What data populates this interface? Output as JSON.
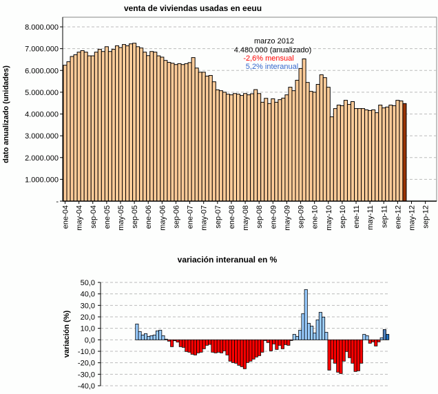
{
  "chart_data": [
    {
      "type": "bar",
      "title": "venta de viviendas usadas en eeuu",
      "ylabel": "dato anualizado (unidades)",
      "xlabel": "",
      "ylim": [
        0,
        8000000
      ],
      "y_ticks": [
        "-",
        "1.000.000",
        "2.000.000",
        "3.000.000",
        "4.000.000",
        "5.000.000",
        "6.000.000",
        "7.000.000",
        "8.000.000"
      ],
      "x_tick_labels": [
        "ene-04",
        "may-04",
        "sep-04",
        "ene-05",
        "may-05",
        "sep-05",
        "ene-06",
        "may-06",
        "sep-06",
        "ene-07",
        "may-07",
        "sep-07",
        "ene-08",
        "may-08",
        "sep-08",
        "ene-09",
        "may-09",
        "sep-09",
        "ene-10",
        "may-10",
        "sep-10",
        "ene-11",
        "may-11",
        "sep-11",
        "ene-12",
        "may-12",
        "sep-12"
      ],
      "x_range": [
        "ene-04",
        "dic-12"
      ],
      "grid": true,
      "colors": {
        "bar": "#ffcc99",
        "highlight": "#993300"
      },
      "values": [
        6240000,
        6400000,
        6640000,
        6720000,
        6840000,
        6910000,
        6840000,
        6670000,
        6670000,
        6840000,
        6970000,
        6870000,
        7090000,
        6870000,
        6970000,
        7130000,
        7050000,
        7190000,
        7130000,
        7220000,
        7250000,
        7090000,
        7030000,
        6840000,
        6680000,
        6870000,
        6840000,
        6670000,
        6610000,
        6460000,
        6370000,
        6330000,
        6270000,
        6310000,
        6270000,
        6310000,
        6360000,
        6590000,
        6110000,
        5920000,
        5920000,
        5740000,
        5770000,
        5480000,
        5110000,
        5070000,
        5000000,
        4910000,
        4880000,
        4940000,
        4910000,
        4850000,
        4940000,
        4880000,
        4930000,
        5120000,
        4940000,
        4540000,
        4720000,
        4480000,
        4700000,
        4540000,
        4660000,
        4730000,
        4880000,
        5230000,
        5070000,
        5550000,
        6090000,
        6530000,
        5450000,
        5040000,
        5000000,
        5360000,
        5800000,
        5670000,
        5230000,
        3870000,
        4250000,
        4410000,
        4380000,
        4630000,
        4440000,
        4570000,
        4250000,
        4250000,
        4250000,
        4190000,
        4160000,
        4190000,
        4060000,
        4410000,
        4280000,
        4320000,
        4410000,
        4380000,
        4630000,
        4600000,
        4480000
      ],
      "annotation": {
        "line1": "marzo 2012",
        "line2": "4.480.000 (anualizado)",
        "line3": "-2,6% mensual",
        "line4": "5,2% interanual",
        "colors": {
          "line1": "#000000",
          "line2": "#000000",
          "line3": "#ff0000",
          "line4": "#3366cc"
        }
      }
    },
    {
      "type": "bar",
      "title": "variación interanual en %",
      "ylabel": "variación (%)",
      "xlabel": "",
      "ylim": [
        -40,
        50
      ],
      "y_ticks": [
        "-40,0",
        "-30,0",
        "-20,0",
        "-10,0",
        "0,0",
        "10,0",
        "20,0",
        "30,0",
        "40,0",
        "50,0"
      ],
      "x_range": [
        "ene-04",
        "mar-12"
      ],
      "series_start": "ene-05",
      "grid": true,
      "colors": {
        "positive": "#99ccff",
        "negative": "#ff0000",
        "prev_month": "#4f81bd",
        "current_month": "#1f6fbf"
      },
      "values": [
        13.8,
        7.2,
        4.2,
        5.4,
        3,
        3.6,
        4.2,
        7.8,
        8.4,
        3.6,
        0.6,
        -1.2,
        -6,
        -0.8,
        -2,
        -6,
        -6.6,
        -10.2,
        -10.8,
        -12.6,
        -13.2,
        -11.4,
        -10.8,
        -7.8,
        -4.8,
        -4,
        -10.8,
        -11.4,
        -10.8,
        -11.4,
        -9.6,
        -13.2,
        -18.6,
        -19.8,
        -20.4,
        -22.2,
        -23.4,
        -25.2,
        -19.8,
        -18.6,
        -16.8,
        -15,
        -13.8,
        -10.8,
        -0.6,
        -2.4,
        -9.6,
        -3.6,
        -8.4,
        -4.8,
        -7.8,
        -4.2,
        -4.8,
        -0.6,
        4.8,
        3,
        8.4,
        22.8,
        43.8,
        14.4,
        12,
        6,
        17.4,
        24,
        19.8,
        6.6,
        -26.4,
        -16.8,
        -20.4,
        -28.2,
        -29.4,
        -18.6,
        -10.2,
        -15.6,
        -20.4,
        -27.6,
        -27,
        -20.4,
        4.8,
        3.6,
        -3,
        -1.8,
        -5.4,
        -1.8,
        1.8,
        9,
        4.8
      ]
    }
  ]
}
